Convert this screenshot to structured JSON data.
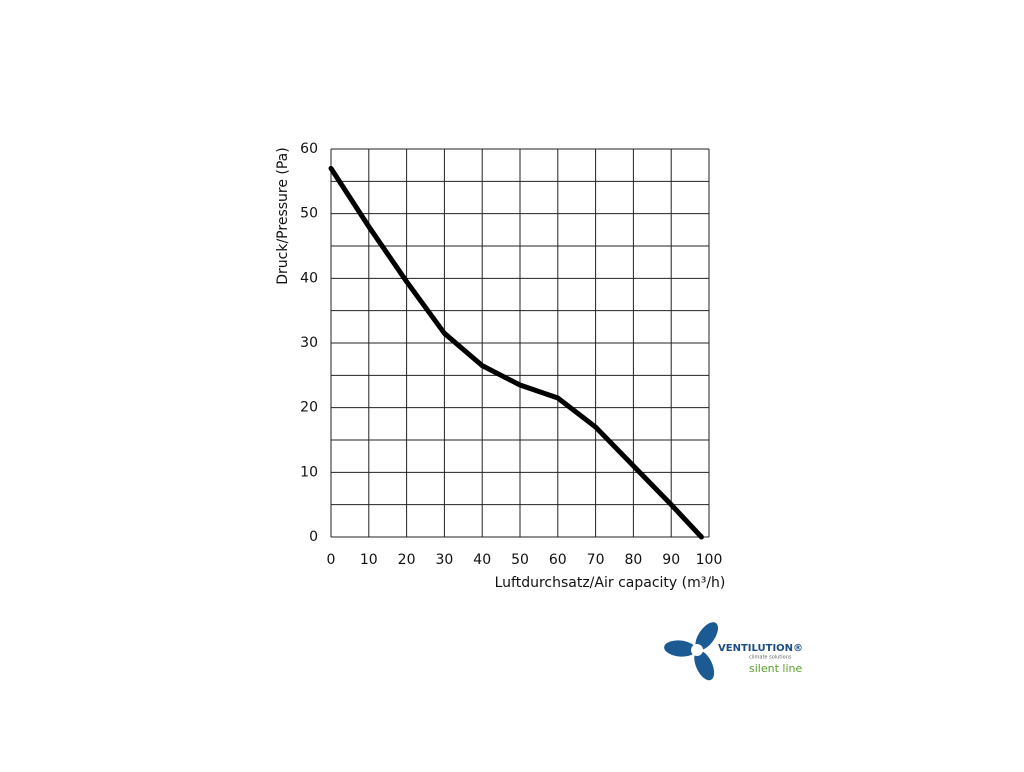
{
  "chart_data": {
    "type": "line",
    "y_label": "Druck/Pressure (Pa)",
    "x_label": "Luftdurchsatz/Air capacity (m³/h)",
    "x": [
      0,
      10,
      20,
      30,
      40,
      50,
      60,
      70,
      80,
      90,
      98
    ],
    "values": [
      57,
      48,
      39.5,
      31.5,
      26.5,
      23.5,
      21.5,
      17,
      11,
      5,
      0
    ],
    "color": "#000000",
    "xlim": [
      0,
      100
    ],
    "xticks": [
      0,
      10,
      20,
      30,
      40,
      50,
      60,
      70,
      80,
      90,
      100
    ],
    "ylim": [
      0,
      60
    ],
    "yticks": [
      0,
      10,
      20,
      30,
      40,
      50,
      60
    ],
    "ygrid": [
      0,
      5,
      10,
      15,
      20,
      25,
      30,
      35,
      40,
      45,
      50,
      55,
      60
    ],
    "grid": true
  },
  "logo": {
    "brand": "VENTILUTION®",
    "tagline": "climate solutions",
    "line": "silent line"
  }
}
